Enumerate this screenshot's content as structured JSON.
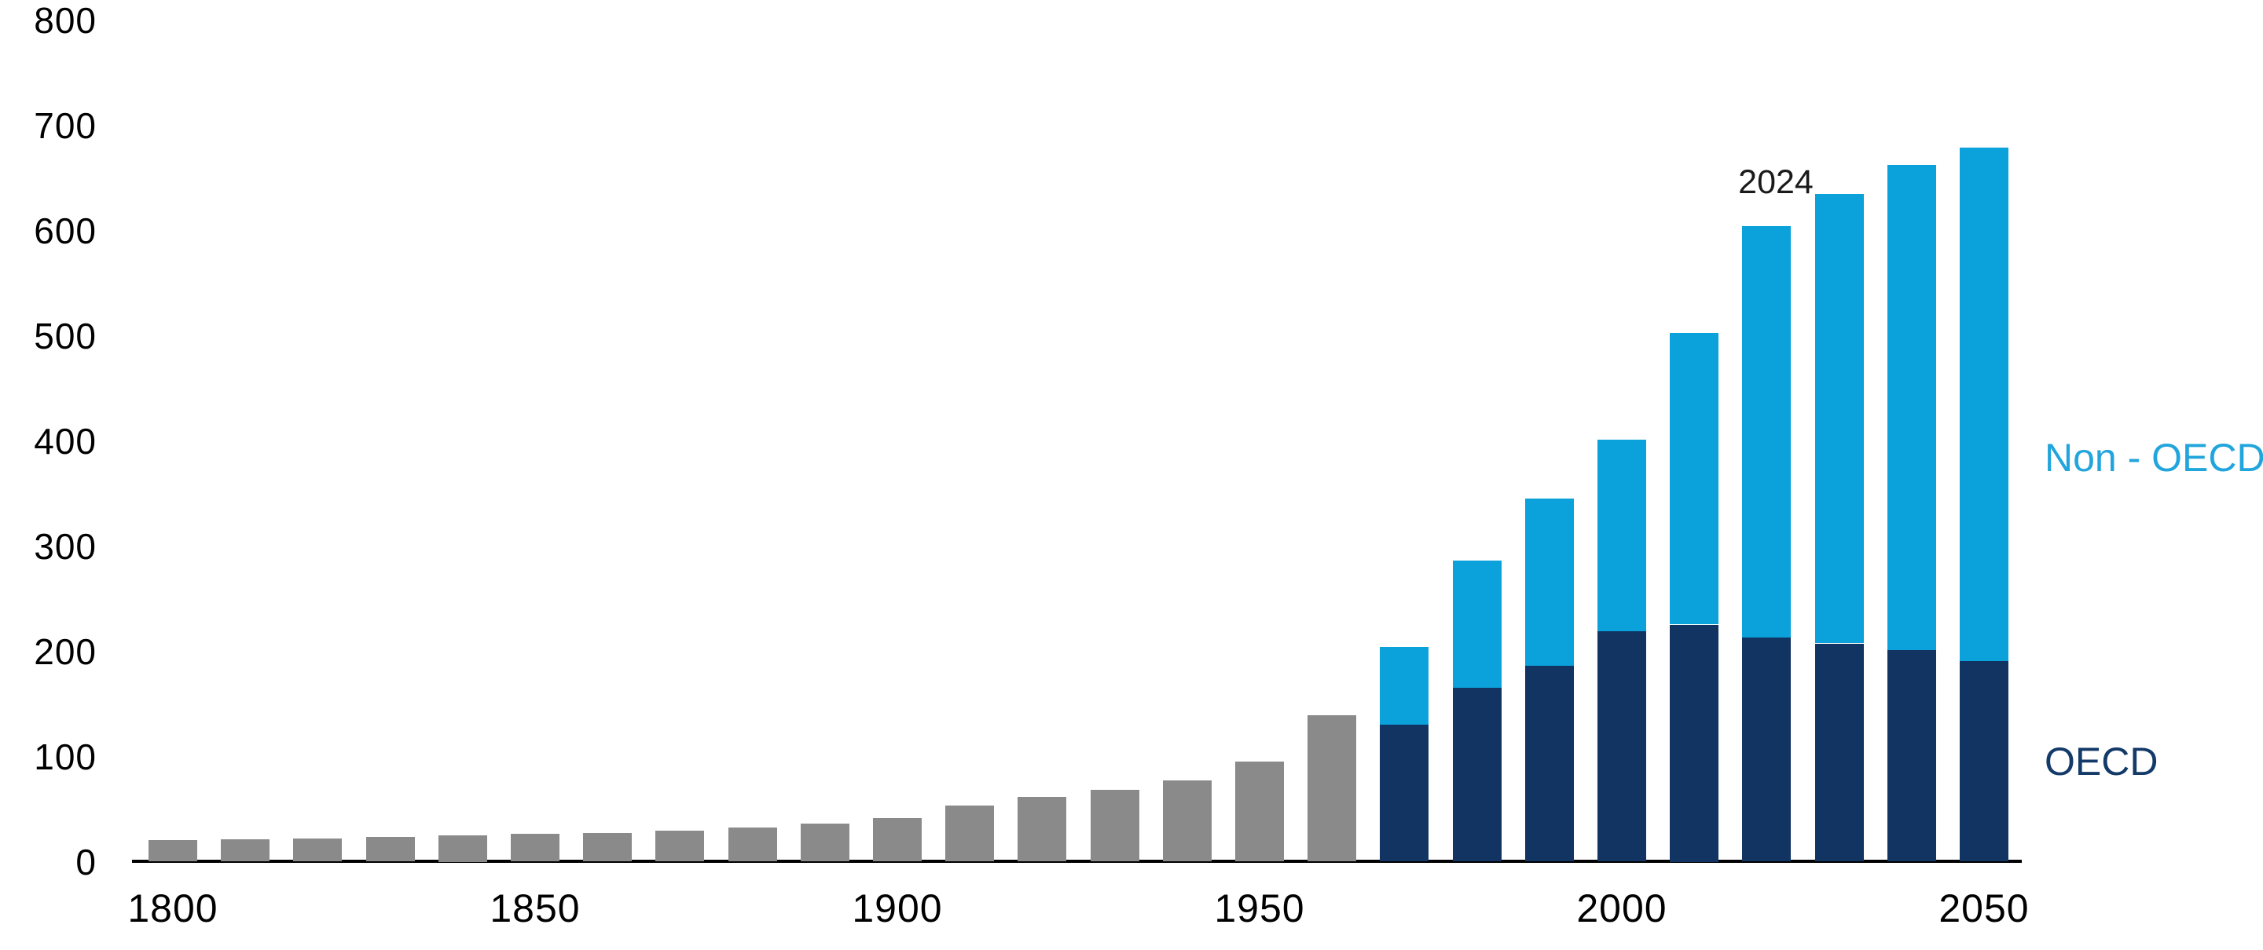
{
  "chart_data": {
    "type": "bar",
    "stacked": true,
    "ylim": [
      0,
      800
    ],
    "y_tick_labels": [
      "0",
      "100",
      "200",
      "300",
      "400",
      "500",
      "600",
      "700",
      "800"
    ],
    "x_tick_years": [
      1800,
      1850,
      1900,
      1950,
      2000,
      2050
    ],
    "grid": false,
    "legend_position": "right-of-bars",
    "legend": [
      {
        "label": "Non - OECD",
        "series_key": "non_oecd"
      },
      {
        "label": "OECD",
        "series_key": "oecd"
      }
    ],
    "annotation": {
      "text": "2024",
      "year": 2020
    },
    "bars": [
      {
        "year": 1800,
        "world": 20
      },
      {
        "year": 1810,
        "world": 21
      },
      {
        "year": 1820,
        "world": 22
      },
      {
        "year": 1830,
        "world": 23
      },
      {
        "year": 1840,
        "world": 25
      },
      {
        "year": 1850,
        "world": 26
      },
      {
        "year": 1860,
        "world": 27
      },
      {
        "year": 1870,
        "world": 29
      },
      {
        "year": 1880,
        "world": 32
      },
      {
        "year": 1890,
        "world": 36
      },
      {
        "year": 1900,
        "world": 41
      },
      {
        "year": 1910,
        "world": 53
      },
      {
        "year": 1920,
        "world": 61
      },
      {
        "year": 1930,
        "world": 68
      },
      {
        "year": 1940,
        "world": 77
      },
      {
        "year": 1950,
        "world": 95
      },
      {
        "year": 1960,
        "world": 139
      },
      {
        "year": 1970,
        "oecd": 130,
        "non_oecd": 74
      },
      {
        "year": 1980,
        "oecd": 165,
        "non_oecd": 121
      },
      {
        "year": 1990,
        "oecd": 186,
        "non_oecd": 159
      },
      {
        "year": 2000,
        "oecd": 219,
        "non_oecd": 182
      },
      {
        "year": 2010,
        "oecd": 225,
        "non_oecd": 277
      },
      {
        "year": 2020,
        "label": "2024",
        "oecd": 213,
        "non_oecd": 391
      },
      {
        "year": 2030,
        "oecd": 207,
        "non_oecd": 427
      },
      {
        "year": 2040,
        "oecd": 201,
        "non_oecd": 461
      },
      {
        "year": 2050,
        "oecd": 190,
        "non_oecd": 488
      }
    ],
    "colors": {
      "historical_gray": "#8A8A8A",
      "oecd_navy": "#113462",
      "non_oecd_blue": "#0BA1DB",
      "non_oecd_label_text": "#21A5DC",
      "oecd_label_text": "#133A68",
      "axis_line": "#000000",
      "tick_text": "#000000"
    }
  }
}
